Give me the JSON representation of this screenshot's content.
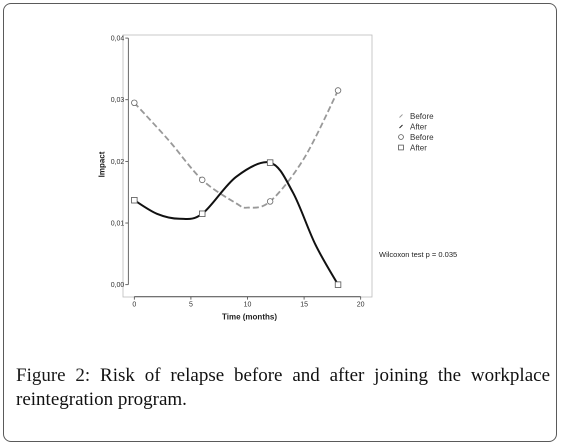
{
  "chart_data": {
    "type": "line",
    "title": "",
    "xlabel": "Time (months)",
    "ylabel": "Impact",
    "xlim": [
      -1,
      21
    ],
    "ylim": [
      -0.002,
      0.0405
    ],
    "x_ticks": [
      0,
      5,
      10,
      15,
      20
    ],
    "x_tick_labels": [
      "0",
      "5",
      "10",
      "15",
      "20"
    ],
    "y_ticks": [
      0.0,
      0.01,
      0.02,
      0.03,
      0.04
    ],
    "y_tick_labels": [
      "0,00",
      "0,01",
      "0,02",
      "0,03",
      "0,04"
    ],
    "grid": false,
    "legend_position": "right",
    "legend": [
      {
        "label": "Before",
        "symbol": "dash-line"
      },
      {
        "label": "After",
        "symbol": "solid-line"
      },
      {
        "label": "Before",
        "symbol": "circle"
      },
      {
        "label": "After",
        "symbol": "square"
      }
    ],
    "series": [
      {
        "name": "Before",
        "style": "dashed",
        "color": "#999999",
        "marker": "circle",
        "x": [
          0,
          6,
          12,
          18
        ],
        "y": [
          0.0295,
          0.017,
          0.0135,
          0.0315
        ],
        "curve_x": [
          0,
          3,
          6,
          9,
          10,
          12,
          15,
          18
        ],
        "curve_y": [
          0.0295,
          0.0235,
          0.017,
          0.0132,
          0.0125,
          0.0135,
          0.0205,
          0.0315
        ]
      },
      {
        "name": "After",
        "style": "solid",
        "color": "#111111",
        "marker": "square",
        "x": [
          0,
          6,
          12,
          18
        ],
        "y": [
          0.0137,
          0.0115,
          0.0198,
          0.0
        ],
        "curve_x": [
          0,
          2,
          4,
          6,
          9,
          12,
          14,
          16,
          18
        ],
        "curve_y": [
          0.0137,
          0.0115,
          0.0107,
          0.0115,
          0.0175,
          0.0198,
          0.015,
          0.0065,
          0.0
        ]
      }
    ],
    "annotation": "Wilcoxon test p = 0.035"
  },
  "caption": {
    "label": "Figure 2:",
    "text": " Risk of relapse before and after joining the workplace reintegration program."
  }
}
